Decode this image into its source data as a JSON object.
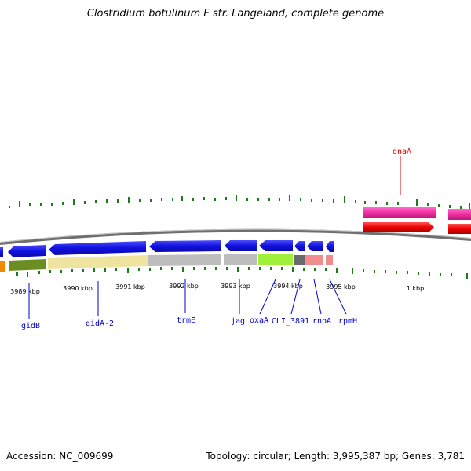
{
  "title": "Clostridium botulinum F str. Langeland, complete genome",
  "footer": {
    "accession": "Accession: NC_009699",
    "summary": "Topology: circular; Length: 3,995,387 bp; Genes: 3,781"
  },
  "scale_labels": [
    "3989 kbp",
    "3990 kbp",
    "3991 kbp",
    "3992 kbp",
    "3993 kbp",
    "3994 kbp",
    "3995 kbp",
    "1 kbp"
  ],
  "genes": [
    {
      "name": "dnaA",
      "strand": "forward",
      "color": "#e60000"
    },
    {
      "name": "gidB",
      "strand": "reverse",
      "color": "#0000cc"
    },
    {
      "name": "gidA-2",
      "strand": "reverse",
      "color": "#0000cc"
    },
    {
      "name": "trmE",
      "strand": "reverse",
      "color": "#0000cc"
    },
    {
      "name": "jag",
      "strand": "reverse",
      "color": "#0000cc"
    },
    {
      "name": "oxaA",
      "strand": "reverse",
      "color": "#0000cc"
    },
    {
      "name": "CLI_3891",
      "strand": "reverse",
      "color": "#0000cc"
    },
    {
      "name": "rnpA",
      "strand": "reverse",
      "color": "#0000cc"
    },
    {
      "name": "rpmH",
      "strand": "reverse",
      "color": "#0000cc"
    }
  ],
  "colors": {
    "forward_gene": "#e60000",
    "reverse_gene": "#1515e6",
    "forward_category": "#f02ca0",
    "backbone": "#777777",
    "tick": "#1c7a1c"
  }
}
